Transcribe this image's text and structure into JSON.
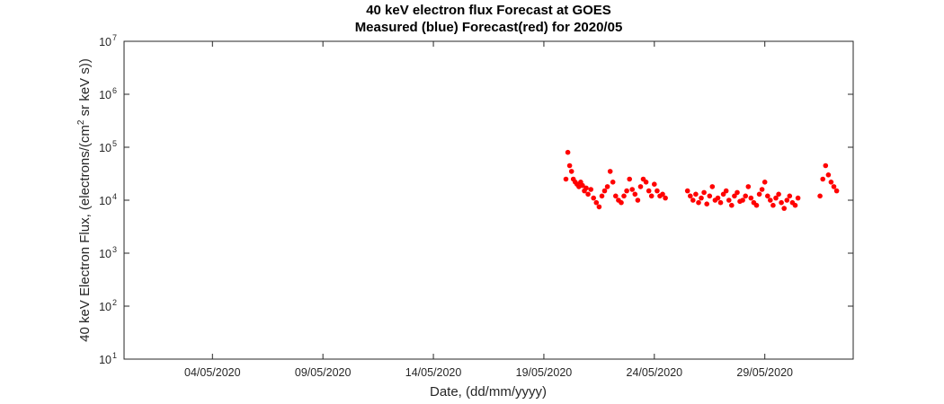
{
  "chart_data": {
    "type": "scatter",
    "title": "40 keV electron flux Forecast at GOES",
    "subtitle": "Measured (blue) Forecast(red) for 2020/05",
    "xlabel": "Date, (dd/mm/yyyy)",
    "ylabel": "40 keV Electron Flux, (electrons/(cm² sr keV s))",
    "yscale": "log",
    "ylim": [
      10,
      10000000
    ],
    "xlim": [
      "2020-04-30",
      "2020-06-02"
    ],
    "x_ticks": [
      "04/05/2020",
      "09/05/2020",
      "14/05/2020",
      "19/05/2020",
      "24/05/2020",
      "29/05/2020"
    ],
    "y_ticks": [
      {
        "base": "10",
        "exp": "1"
      },
      {
        "base": "10",
        "exp": "2"
      },
      {
        "base": "10",
        "exp": "3"
      },
      {
        "base": "10",
        "exp": "4"
      },
      {
        "base": "10",
        "exp": "5"
      },
      {
        "base": "10",
        "exp": "6"
      },
      {
        "base": "10",
        "exp": "7"
      }
    ],
    "grid": false,
    "series": [
      {
        "color": "#ff0000",
        "x": [
          "2020-05-20 00:00",
          "2020-05-20 02:00",
          "2020-05-20 04:00",
          "2020-05-20 06:00",
          "2020-05-20 08:00",
          "2020-05-20 10:00",
          "2020-05-20 12:00",
          "2020-05-20 14:00",
          "2020-05-20 16:00",
          "2020-05-20 18:00",
          "2020-05-20 20:00",
          "2020-05-20 22:00",
          "2020-05-21 00:00",
          "2020-05-21 03:00",
          "2020-05-21 06:00",
          "2020-05-21 09:00",
          "2020-05-21 12:00",
          "2020-05-21 15:00",
          "2020-05-21 18:00",
          "2020-05-21 21:00",
          "2020-05-22 00:00",
          "2020-05-22 03:00",
          "2020-05-22 06:00",
          "2020-05-22 09:00",
          "2020-05-22 12:00",
          "2020-05-22 15:00",
          "2020-05-22 18:00",
          "2020-05-22 21:00",
          "2020-05-23 00:00",
          "2020-05-23 03:00",
          "2020-05-23 06:00",
          "2020-05-23 09:00",
          "2020-05-23 12:00",
          "2020-05-23 15:00",
          "2020-05-23 18:00",
          "2020-05-23 21:00",
          "2020-05-24 00:00",
          "2020-05-24 03:00",
          "2020-05-24 06:00",
          "2020-05-24 09:00",
          "2020-05-24 12:00",
          "2020-05-25 12:00",
          "2020-05-25 15:00",
          "2020-05-25 18:00",
          "2020-05-25 21:00",
          "2020-05-26 00:00",
          "2020-05-26 03:00",
          "2020-05-26 06:00",
          "2020-05-26 09:00",
          "2020-05-26 12:00",
          "2020-05-26 15:00",
          "2020-05-26 18:00",
          "2020-05-26 21:00",
          "2020-05-27 00:00",
          "2020-05-27 03:00",
          "2020-05-27 06:00",
          "2020-05-27 09:00",
          "2020-05-27 12:00",
          "2020-05-27 15:00",
          "2020-05-27 18:00",
          "2020-05-27 21:00",
          "2020-05-28 00:00",
          "2020-05-28 03:00",
          "2020-05-28 06:00",
          "2020-05-28 09:00",
          "2020-05-28 12:00",
          "2020-05-28 15:00",
          "2020-05-28 18:00",
          "2020-05-28 21:00",
          "2020-05-29 00:00",
          "2020-05-29 03:00",
          "2020-05-29 06:00",
          "2020-05-29 09:00",
          "2020-05-29 12:00",
          "2020-05-29 15:00",
          "2020-05-29 18:00",
          "2020-05-29 21:00",
          "2020-05-30 00:00",
          "2020-05-30 03:00",
          "2020-05-30 06:00",
          "2020-05-30 09:00",
          "2020-05-30 12:00",
          "2020-05-31 12:00",
          "2020-05-31 15:00",
          "2020-05-31 18:00",
          "2020-05-31 21:00",
          "2020-06-01 00:00",
          "2020-06-01 03:00",
          "2020-06-01 06:00"
        ],
        "y": [
          25000,
          80000,
          45000,
          35000,
          25000,
          22000,
          20000,
          18000,
          22000,
          19000,
          15000,
          17000,
          13000,
          16000,
          11000,
          9000,
          7500,
          12000,
          15000,
          18000,
          35000,
          22000,
          12000,
          10000,
          9000,
          12000,
          15000,
          25000,
          16000,
          13000,
          10000,
          18000,
          25000,
          22000,
          15000,
          12000,
          20000,
          15000,
          12000,
          13000,
          11000,
          15000,
          12000,
          10000,
          13000,
          9000,
          11000,
          14000,
          8500,
          12000,
          18000,
          10000,
          11000,
          9000,
          13000,
          15000,
          10000,
          8000,
          12000,
          14000,
          9500,
          10000,
          12000,
          18000,
          11000,
          9000,
          8000,
          13000,
          16000,
          22000,
          12000,
          10000,
          8000,
          11000,
          13000,
          9000,
          7000,
          10000,
          12000,
          9000,
          8000,
          11000,
          12000,
          25000,
          45000,
          30000,
          22000,
          18000,
          15000
        ]
      }
    ]
  }
}
